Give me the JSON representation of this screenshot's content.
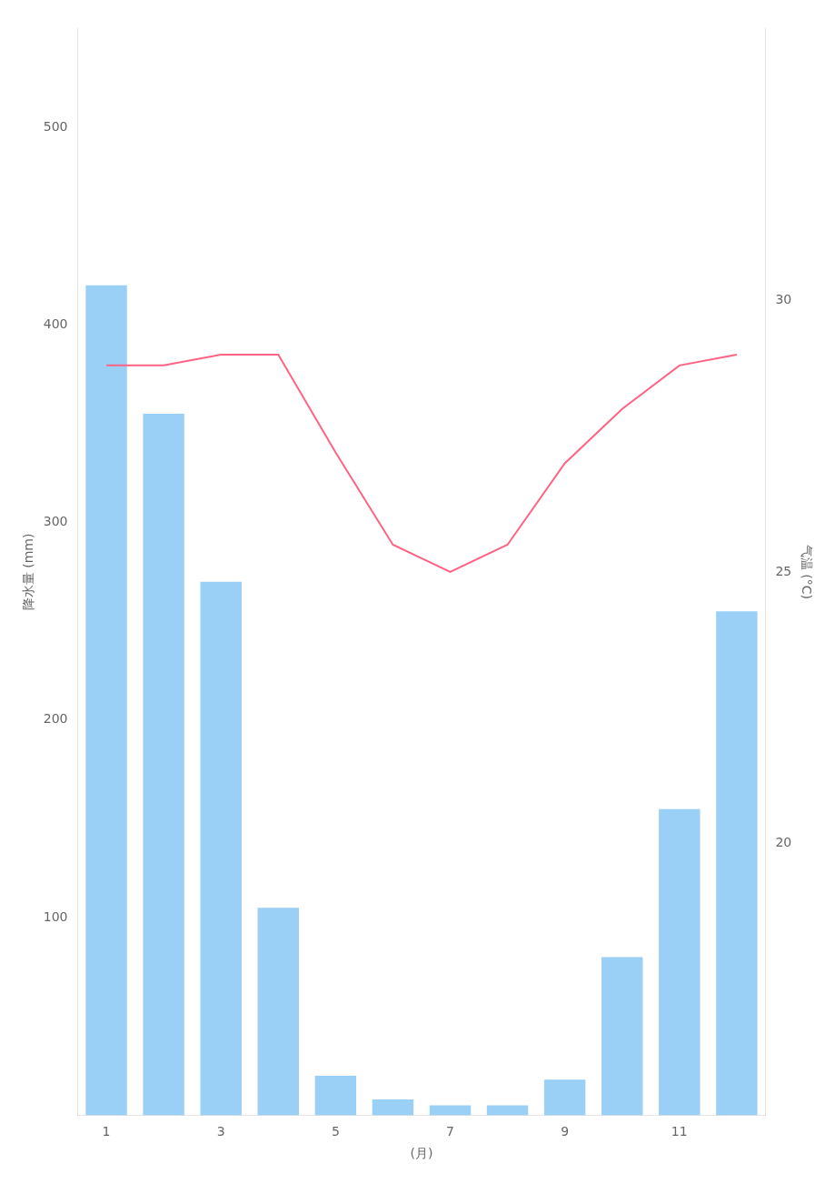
{
  "chart_data": {
    "type": "bar",
    "categories": [
      "1",
      null,
      "3",
      null,
      "5",
      null,
      "7",
      null,
      "9",
      null,
      "11",
      null
    ],
    "x_label": "(月)",
    "y_label": "降水量 (mm)",
    "y2_label": "气温 (°C)",
    "series": [
      {
        "type": "bar",
        "values": [
          420,
          355,
          270,
          105,
          20,
          8,
          5,
          5,
          18,
          80,
          155,
          255
        ]
      },
      {
        "type": "line",
        "axis": "y2",
        "values": [
          28.8,
          28.8,
          29.0,
          29.0,
          27.2,
          25.5,
          25.0,
          25.5,
          27.0,
          28.0,
          28.8,
          29.0
        ]
      }
    ],
    "ylim": [
      0,
      550
    ],
    "yticks": [
      100,
      200,
      300,
      400,
      500
    ],
    "y2lim": [
      15,
      35
    ],
    "y2ticks": [
      20,
      25,
      30
    ],
    "grid": false
  }
}
